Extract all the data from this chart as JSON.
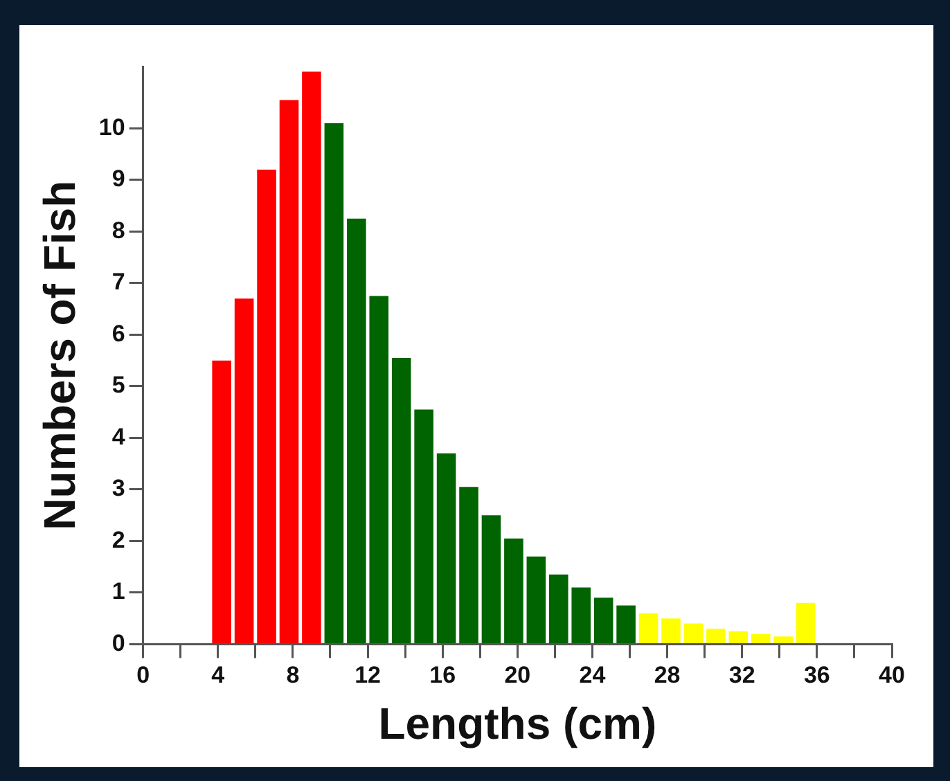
{
  "chart_data": {
    "type": "histogram",
    "xlabel": "Lengths (cm)",
    "ylabel": "Numbers of Fish",
    "bins": [
      0,
      1.2,
      2.4,
      3.6,
      4.8,
      6,
      7.2,
      8.4,
      9.6,
      10.8,
      12,
      13.2,
      14.4,
      15.6,
      16.8,
      18,
      19.2,
      20.4,
      21.6,
      22.8,
      24,
      25.2,
      26.4,
      27.6,
      28.8,
      30,
      31.2,
      32.4,
      33.6,
      34.8,
      36
    ],
    "values": [
      0,
      0,
      0,
      5.5,
      6.7,
      9.2,
      10.55,
      11.1,
      10.1,
      8.25,
      6.75,
      5.55,
      4.55,
      3.7,
      3.05,
      2.5,
      2.05,
      1.7,
      1.35,
      1.1,
      0.9,
      0.75,
      0.6,
      0.5,
      0.4,
      0.3,
      0.25,
      0.2,
      0.15,
      0.8
    ],
    "colors": [
      "#ff0000",
      "#ff0000",
      "#ff0000",
      "#ff0000",
      "#ff0000",
      "#ff0000",
      "#ff0000",
      "#ff0000",
      "#006400",
      "#006400",
      "#006400",
      "#006400",
      "#006400",
      "#006400",
      "#006400",
      "#006400",
      "#006400",
      "#006400",
      "#006400",
      "#006400",
      "#006400",
      "#006400",
      "#ffff00",
      "#ffff00",
      "#ffff00",
      "#ffff00",
      "#ffff00",
      "#ffff00",
      "#ffff00",
      "#ffff00"
    ],
    "xlim": [
      0,
      40
    ],
    "xticks": [
      0,
      {
        "value": 2,
        "label": null
      },
      4,
      {
        "value": 6,
        "label": null
      },
      8,
      {
        "value": 10,
        "label": null
      },
      12,
      {
        "value": 14,
        "label": null
      },
      16,
      {
        "value": 18,
        "label": null
      },
      20,
      {
        "value": 22,
        "label": null
      },
      24,
      {
        "value": 26,
        "label": null
      },
      28,
      {
        "value": 30,
        "label": null
      },
      32,
      {
        "value": 34,
        "label": null
      },
      36,
      {
        "value": 38,
        "label": null
      },
      40
    ],
    "ylim": [
      0,
      11.2
    ],
    "yticks": [
      0,
      1,
      2,
      3,
      4,
      5,
      6,
      7,
      8,
      9,
      10
    ],
    "grid": false
  }
}
